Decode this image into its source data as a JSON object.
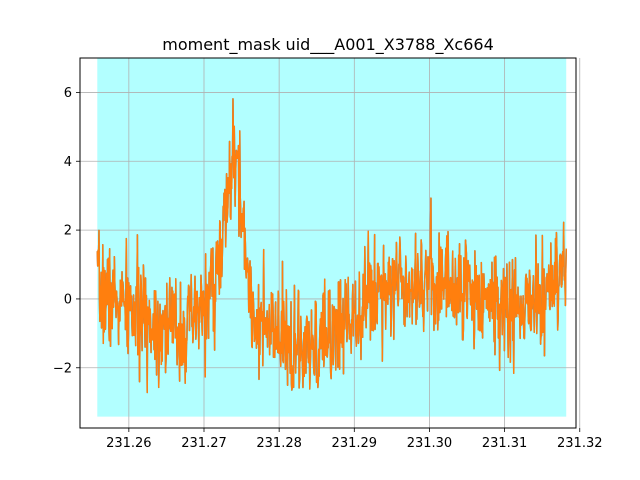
{
  "chart_data": {
    "type": "line",
    "title": "moment_mask uid___A001_X3788_Xc664",
    "xlabel": "",
    "ylabel": "",
    "xlim": [
      231.2535,
      231.3195
    ],
    "ylim": [
      -3.75,
      7.0
    ],
    "x_ticks": [
      231.26,
      231.27,
      231.28,
      231.29,
      231.3,
      231.31,
      231.32
    ],
    "x_tick_labels": [
      "231.26",
      "231.27",
      "231.28",
      "231.29",
      "231.30",
      "231.31",
      "231.32"
    ],
    "y_ticks": [
      -2,
      0,
      2,
      4,
      6
    ],
    "y_tick_labels": [
      "−2",
      "0",
      "2",
      "4",
      "6"
    ],
    "grid": true,
    "shaded_region": {
      "x": [
        231.2558,
        231.3182
      ],
      "y": [
        -3.42,
        7.0
      ],
      "color": "#00ffff",
      "opacity": 0.3
    },
    "series": [
      {
        "color": "#1f77b4",
        "x_start": 231.2558,
        "x_end": 231.3182,
        "points": 1100,
        "seed": 7,
        "noise": 1.25,
        "baseline": [
          [
            231.2558,
            0.3
          ],
          [
            231.262,
            -0.6
          ],
          [
            231.268,
            -0.9
          ],
          [
            231.272,
            0.5
          ],
          [
            231.278,
            -0.9
          ],
          [
            231.284,
            -1.7
          ],
          [
            231.289,
            -0.5
          ],
          [
            231.294,
            0.5
          ],
          [
            231.3,
            0.6
          ],
          [
            231.306,
            0.2
          ],
          [
            231.312,
            -0.4
          ],
          [
            231.3182,
            0.6
          ]
        ],
        "peaks": [
          {
            "center": 231.2741,
            "width": 0.0011,
            "height": 3.9
          }
        ]
      },
      {
        "color": "#ff7f0e",
        "x_start": 231.2558,
        "x_end": 231.3182,
        "points": 1100,
        "seed": 7,
        "noise": 1.25,
        "baseline": [
          [
            231.2558,
            0.3
          ],
          [
            231.262,
            -0.6
          ],
          [
            231.268,
            -0.9
          ],
          [
            231.272,
            0.5
          ],
          [
            231.278,
            -0.9
          ],
          [
            231.284,
            -1.7
          ],
          [
            231.289,
            -0.5
          ],
          [
            231.294,
            0.5
          ],
          [
            231.3,
            0.6
          ],
          [
            231.306,
            0.2
          ],
          [
            231.312,
            -0.4
          ],
          [
            231.3182,
            0.6
          ]
        ],
        "peaks": [
          {
            "center": 231.2741,
            "width": 0.0011,
            "height": 3.9
          }
        ]
      }
    ]
  }
}
